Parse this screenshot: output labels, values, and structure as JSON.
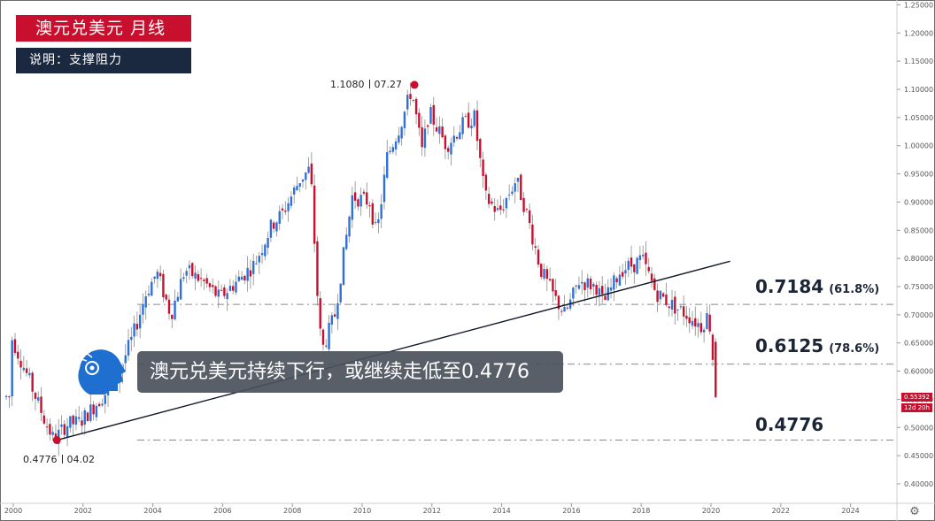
{
  "header": {
    "title": "澳元兑美元 月线",
    "note": "说明：支撑阻力"
  },
  "banner": {
    "text": "澳元兑美元持续下行，或继续走低至0.4776"
  },
  "levels": [
    {
      "value_label": "0.7184",
      "pct_label": "(61.8%)",
      "price": 0.7184
    },
    {
      "value_label": "0.6125",
      "pct_label": "(78.6%)",
      "price": 0.6125
    },
    {
      "value_label": "0.4776",
      "pct_label": "",
      "price": 0.4776
    }
  ],
  "points": {
    "high": {
      "price_label": "1.1080",
      "date_label": "07.27",
      "price": 1.108,
      "time": 2011.5
    },
    "low": {
      "price_label": "0.4776",
      "date_label": "04.02",
      "price": 0.4776,
      "time": 2001.25
    }
  },
  "current_price": {
    "label": "0.55392",
    "timer": "12d 20h",
    "price": 0.55392
  },
  "colors": {
    "up": "#2f6fd8",
    "down": "#c8102e",
    "trendline": "#111827",
    "level_line": "#8a8a8a",
    "title_bg": "#c8102e",
    "note_bg": "#1a2940"
  },
  "chart_data": {
    "type": "candlestick",
    "title": "澳元兑美元 月线",
    "x_axis": {
      "ticks": [
        "2000",
        "2002",
        "2004",
        "2006",
        "2008",
        "2010",
        "2012",
        "2014",
        "2016",
        "2018",
        "2020",
        "2022",
        "2024"
      ],
      "range": [
        1999.8,
        2025.3
      ]
    },
    "y_axis": {
      "ticks": [
        "0.40000",
        "0.45000",
        "0.50000",
        "0.55000",
        "0.60000",
        "0.65000",
        "0.70000",
        "0.75000",
        "0.80000",
        "0.85000",
        "0.90000",
        "0.95000",
        "1.00000",
        "1.05000",
        "1.10000",
        "1.15000",
        "1.20000",
        "1.25000"
      ],
      "range": [
        0.38,
        1.255
      ]
    },
    "trendline": {
      "from": {
        "time": 2001.25,
        "price": 0.4776
      },
      "to": {
        "time": 2020.55,
        "price": 0.795
      }
    },
    "anchors": [
      [
        2000.0,
        0.665
      ],
      [
        2000.5,
        0.59
      ],
      [
        2001.0,
        0.51
      ],
      [
        2001.25,
        0.4776
      ],
      [
        2001.6,
        0.505
      ],
      [
        2002.0,
        0.51
      ],
      [
        2002.5,
        0.545
      ],
      [
        2003.0,
        0.58
      ],
      [
        2003.5,
        0.66
      ],
      [
        2003.9,
        0.74
      ],
      [
        2004.2,
        0.775
      ],
      [
        2004.6,
        0.7
      ],
      [
        2005.0,
        0.78
      ],
      [
        2005.5,
        0.76
      ],
      [
        2006.0,
        0.73
      ],
      [
        2006.5,
        0.76
      ],
      [
        2007.0,
        0.79
      ],
      [
        2007.5,
        0.86
      ],
      [
        2007.8,
        0.88
      ],
      [
        2008.3,
        0.94
      ],
      [
        2008.6,
        0.96
      ],
      [
        2008.85,
        0.68
      ],
      [
        2008.95,
        0.64
      ],
      [
        2009.3,
        0.7
      ],
      [
        2009.8,
        0.91
      ],
      [
        2010.3,
        0.9
      ],
      [
        2010.5,
        0.84
      ],
      [
        2010.8,
        0.98
      ],
      [
        2011.2,
        1.04
      ],
      [
        2011.5,
        1.1
      ],
      [
        2011.8,
        0.99
      ],
      [
        2012.0,
        1.06
      ],
      [
        2012.5,
        1.0
      ],
      [
        2013.0,
        1.04
      ],
      [
        2013.3,
        1.05
      ],
      [
        2013.6,
        0.91
      ],
      [
        2014.0,
        0.88
      ],
      [
        2014.5,
        0.94
      ],
      [
        2014.8,
        0.88
      ],
      [
        2015.2,
        0.78
      ],
      [
        2015.6,
        0.73
      ],
      [
        2015.9,
        0.7
      ],
      [
        2016.3,
        0.76
      ],
      [
        2016.8,
        0.75
      ],
      [
        2017.0,
        0.72
      ],
      [
        2017.5,
        0.78
      ],
      [
        2017.9,
        0.79
      ],
      [
        2018.1,
        0.8
      ],
      [
        2018.5,
        0.74
      ],
      [
        2018.9,
        0.72
      ],
      [
        2019.4,
        0.7
      ],
      [
        2019.8,
        0.68
      ],
      [
        2020.0,
        0.7
      ],
      [
        2020.1,
        0.66
      ],
      [
        2020.2,
        0.554
      ]
    ]
  }
}
